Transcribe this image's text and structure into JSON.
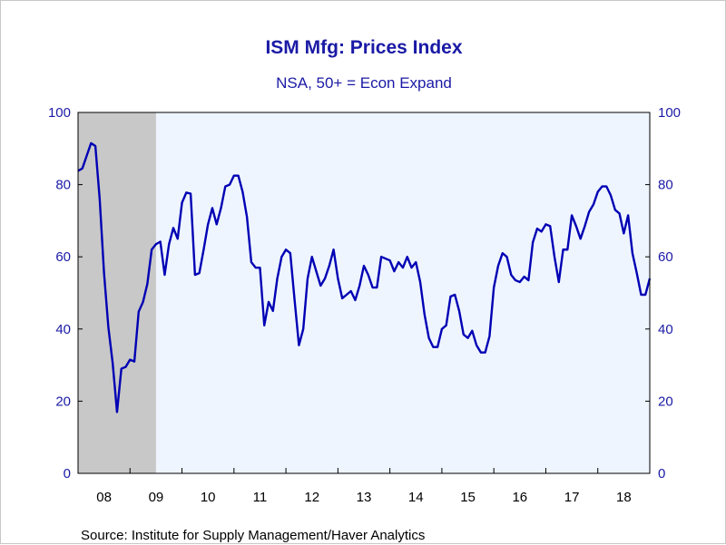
{
  "chart_data": {
    "type": "line",
    "title": "ISM Mfg: Prices Index",
    "subtitle": "NSA, 50+ = Econ Expand",
    "source": "Source:  Institute for Supply Management/Haver Analytics",
    "ylim": [
      0,
      100
    ],
    "yticks": [
      "0",
      "20",
      "40",
      "60",
      "80",
      "100"
    ],
    "xlim": [
      2008.0,
      2019.0
    ],
    "xtick_labels": [
      "08",
      "09",
      "10",
      "11",
      "12",
      "13",
      "14",
      "15",
      "16",
      "17",
      "18"
    ],
    "recession_shading": [
      2008.0,
      2009.5
    ],
    "grid": false,
    "colors": {
      "line": "#0000b4",
      "plot_bg": "#eef5ff",
      "recession": "#c8c8c8",
      "text": "#1a1aa6"
    },
    "series": [
      {
        "start": "2008-01",
        "frequency": "monthly",
        "values": [
          83.8,
          84.5,
          88.0,
          91.5,
          90.7,
          76.0,
          55.5,
          40.5,
          30.5,
          17.0,
          29.0,
          29.5,
          31.5,
          31.0,
          44.8,
          47.5,
          52.5,
          62.0,
          63.5,
          64.2,
          55.0,
          63.5,
          68.0,
          65.0,
          75.0,
          77.8,
          77.5,
          55.0,
          55.5,
          62.0,
          69.0,
          73.5,
          69.0,
          73.5,
          79.5,
          80.0,
          82.5,
          82.5,
          78.0,
          71.0,
          58.5,
          57.0,
          57.0,
          41.0,
          47.5,
          45.0,
          54.0,
          60.0,
          62.0,
          61.0,
          48.0,
          35.5,
          40.0,
          54.0,
          60.0,
          56.0,
          52.0,
          54.0,
          57.5,
          62.0,
          54.0,
          48.5,
          49.5,
          50.5,
          48.0,
          52.0,
          57.5,
          55.0,
          51.5,
          51.5,
          60.0,
          59.5,
          59.0,
          56.0,
          58.5,
          57.0,
          60.0,
          57.0,
          58.5,
          53.0,
          44.0,
          37.5,
          35.0,
          35.0,
          40.0,
          41.0,
          49.0,
          49.5,
          45.0,
          38.5,
          37.5,
          39.5,
          35.5,
          33.5,
          33.5,
          38.0,
          51.5,
          57.5,
          61.0,
          60.0,
          55.0,
          53.5,
          53.0,
          54.5,
          53.5,
          64.0,
          67.8,
          67.0,
          69.0,
          68.5,
          60.0,
          53.0,
          62.0,
          62.0,
          71.5,
          68.5,
          65.0,
          68.5,
          72.5,
          74.5,
          78.0,
          79.5,
          79.5,
          77.0,
          73.0,
          72.0,
          66.5,
          71.5,
          61.0,
          55.5,
          49.5,
          49.5,
          54.0
        ]
      }
    ]
  }
}
